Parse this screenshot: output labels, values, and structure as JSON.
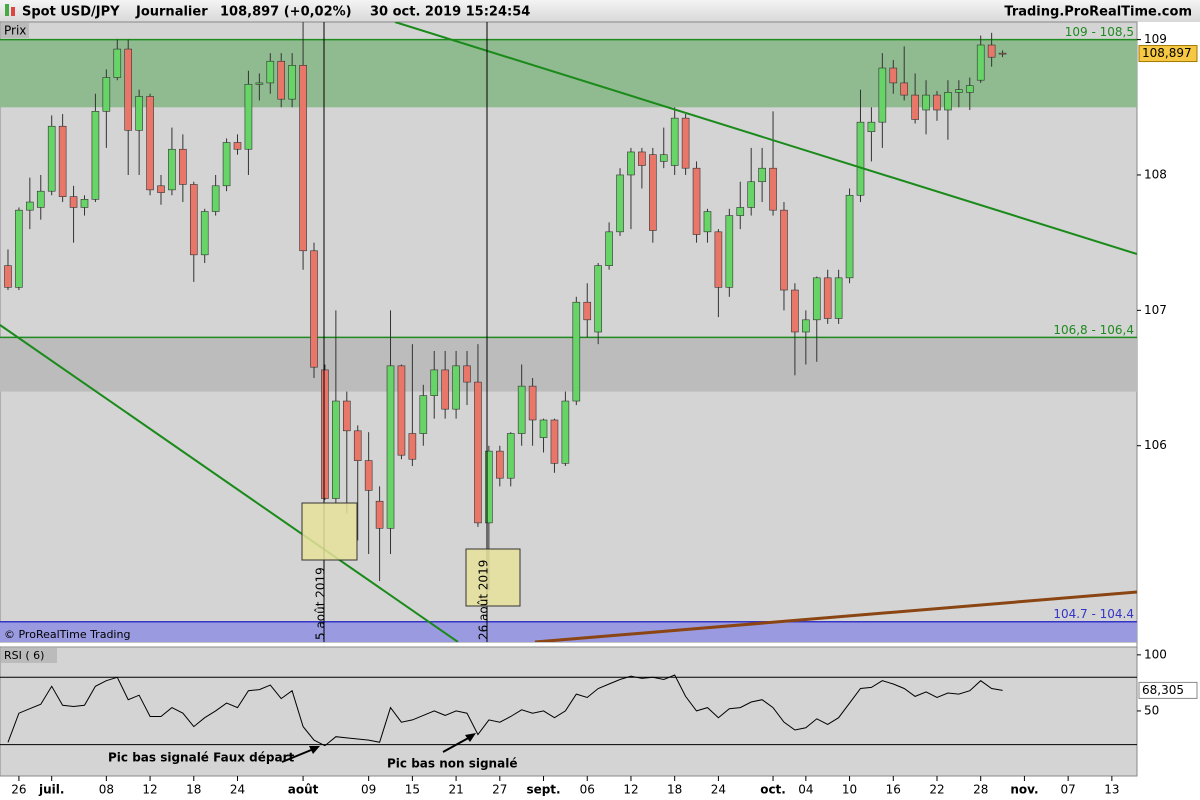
{
  "header": {
    "title": "Spot USD/JPY",
    "period": "Journalier",
    "price": "108,897 (+0,02%)",
    "datetime": "30 oct. 2019 15:24:54",
    "site": "Trading.ProRealTime.com"
  },
  "chart_data": [
    {
      "type": "candlestick",
      "label": "Prix",
      "copyright": "© ProRealTime Trading",
      "open": [
        107.33,
        107.17,
        107.74,
        107.76,
        107.88,
        108.36,
        107.84,
        107.76,
        107.82,
        108.47,
        108.72,
        108.93,
        108.33,
        108.58,
        107.92,
        107.89,
        108.19,
        107.93,
        107.41,
        107.73,
        107.92,
        108.24,
        108.19,
        108.67,
        108.68,
        108.84,
        108.56,
        108.81,
        107.44,
        106.56,
        105.61,
        106.33,
        106.11,
        105.89,
        105.59,
        105.39,
        106.59,
        106.09,
        106.09,
        106.37,
        106.56,
        106.27,
        106.59,
        106.47,
        105.43,
        105.96,
        105.76,
        106.09,
        106.44,
        106.06,
        106.19,
        105.87,
        106.33,
        107.06,
        106.84,
        107.33,
        107.58,
        108.0,
        108.17,
        108.15,
        108.1,
        108.07,
        108.42,
        108.05,
        107.58,
        107.58,
        107.17,
        107.7,
        107.76,
        107.95,
        108.05,
        107.74,
        107.15,
        106.84,
        106.93,
        107.24,
        106.94,
        107.24,
        107.85,
        108.32,
        108.39,
        108.79,
        108.68,
        108.59,
        108.48,
        108.59,
        108.48,
        108.61,
        108.61,
        108.7,
        108.96,
        108.9
      ],
      "high": [
        107.45,
        107.76,
        107.98,
        108.0,
        108.44,
        108.45,
        107.92,
        107.85,
        108.6,
        108.78,
        109.0,
        109.0,
        108.63,
        108.6,
        108.0,
        108.35,
        108.3,
        107.95,
        107.75,
        108.0,
        108.27,
        108.3,
        108.77,
        108.75,
        108.9,
        108.9,
        108.9,
        109.13,
        107.5,
        106.6,
        107.0,
        106.4,
        106.15,
        106.1,
        105.7,
        107.0,
        106.6,
        106.75,
        106.45,
        106.7,
        106.7,
        106.7,
        106.7,
        106.75,
        106.0,
        106.0,
        106.1,
        106.6,
        106.5,
        106.2,
        106.2,
        106.4,
        107.1,
        107.2,
        107.35,
        107.65,
        108.05,
        108.2,
        108.2,
        108.2,
        108.35,
        108.5,
        108.45,
        108.1,
        107.75,
        107.6,
        107.75,
        107.95,
        108.2,
        108.2,
        108.47,
        107.8,
        107.2,
        107.0,
        107.25,
        107.3,
        107.3,
        107.9,
        108.63,
        108.5,
        108.9,
        108.85,
        108.95,
        108.75,
        108.7,
        108.62,
        108.7,
        108.7,
        108.72,
        109.03,
        109.05,
        108.92
      ],
      "low": [
        107.15,
        107.15,
        107.6,
        107.67,
        107.85,
        107.8,
        107.5,
        107.7,
        107.8,
        108.2,
        108.7,
        108.0,
        108.0,
        107.85,
        107.78,
        107.85,
        107.8,
        107.21,
        107.35,
        107.7,
        107.88,
        108.15,
        108.0,
        108.55,
        108.6,
        108.5,
        108.5,
        107.3,
        106.5,
        105.6,
        105.58,
        105.5,
        105.3,
        105.2,
        105.0,
        105.2,
        105.9,
        105.85,
        106.0,
        106.2,
        106.2,
        106.2,
        106.3,
        105.4,
        104.93,
        105.7,
        105.7,
        106.0,
        106.0,
        105.95,
        105.8,
        105.85,
        106.3,
        106.8,
        106.75,
        107.3,
        107.55,
        107.6,
        107.9,
        107.5,
        108.05,
        108.0,
        108.0,
        107.5,
        107.5,
        106.95,
        107.1,
        107.6,
        107.7,
        107.8,
        107.7,
        107.0,
        106.52,
        106.6,
        106.62,
        106.9,
        106.9,
        107.2,
        107.8,
        108.1,
        108.2,
        108.6,
        108.55,
        108.38,
        108.3,
        108.4,
        108.26,
        108.5,
        108.48,
        108.68,
        108.8,
        108.87
      ],
      "close": [
        107.17,
        107.74,
        107.8,
        107.88,
        108.36,
        107.84,
        107.76,
        107.82,
        108.47,
        108.72,
        108.93,
        108.33,
        108.58,
        107.89,
        107.87,
        108.19,
        107.93,
        107.41,
        107.73,
        107.92,
        108.24,
        108.19,
        108.67,
        108.68,
        108.84,
        108.56,
        108.81,
        107.44,
        106.58,
        105.61,
        106.33,
        106.11,
        105.89,
        105.67,
        105.39,
        106.59,
        105.93,
        105.9,
        106.37,
        106.56,
        106.27,
        106.59,
        106.47,
        105.43,
        105.96,
        105.76,
        106.09,
        106.44,
        106.19,
        106.19,
        105.87,
        106.33,
        107.06,
        106.93,
        107.33,
        107.58,
        108.0,
        108.17,
        108.07,
        107.59,
        108.15,
        108.42,
        108.05,
        107.56,
        107.73,
        107.17,
        107.7,
        107.76,
        107.95,
        108.05,
        107.74,
        107.15,
        106.84,
        106.93,
        107.24,
        106.94,
        107.24,
        107.85,
        108.39,
        108.39,
        108.79,
        108.68,
        108.59,
        108.41,
        108.59,
        108.48,
        108.61,
        108.63,
        108.66,
        108.96,
        108.87,
        108.897
      ],
      "colors": {
        "up": "#66d466",
        "down": "#e8776a"
      },
      "ylim": [
        104.55,
        109.13
      ],
      "yticks": [
        106,
        107,
        108,
        109
      ],
      "xlim": [
        -0.73,
        103.3
      ],
      "xticks": [
        {
          "value": 1,
          "label": "26"
        },
        {
          "value": 4,
          "label": "juil."
        },
        {
          "value": 9,
          "label": "08"
        },
        {
          "value": 13,
          "label": "12"
        },
        {
          "value": 17,
          "label": "18"
        },
        {
          "value": 21,
          "label": "24"
        },
        {
          "value": 27,
          "label": "août"
        },
        {
          "value": 33,
          "label": "09"
        },
        {
          "value": 37,
          "label": "15"
        },
        {
          "value": 41,
          "label": "21"
        },
        {
          "value": 45,
          "label": "27"
        },
        {
          "value": 49,
          "label": "sept."
        },
        {
          "value": 53,
          "label": "06"
        },
        {
          "value": 57,
          "label": "12"
        },
        {
          "value": 61,
          "label": "18"
        },
        {
          "value": 65,
          "label": "24"
        },
        {
          "value": 70,
          "label": "oct."
        },
        {
          "value": 73,
          "label": "04"
        },
        {
          "value": 77,
          "label": "10"
        },
        {
          "value": 81,
          "label": "16"
        },
        {
          "value": 85,
          "label": "22"
        },
        {
          "value": 89,
          "label": "28"
        },
        {
          "value": 93,
          "label": "nov."
        },
        {
          "value": 97,
          "label": "07"
        },
        {
          "value": 101,
          "label": "13"
        }
      ],
      "last_price": {
        "value": 108.897,
        "label": "108,897"
      },
      "zones": [
        {
          "from": 109,
          "to": 108.5,
          "label": "109 - 108,5",
          "fill": "#90bb90",
          "color": "#1f8a1f"
        },
        {
          "from": 106.8,
          "to": 106.4,
          "label": "106,8 - 106,4",
          "fill": "#bcbcbc",
          "color": "#1f8a1f"
        },
        {
          "from": 104.7,
          "to": 104.4,
          "label": "104.7 - 104.4",
          "fill": "#9a9ae0",
          "color": "#3535c8"
        }
      ],
      "annotations": [
        "5 août 2019",
        "26 août 2019"
      ]
    },
    {
      "type": "line",
      "title": "RSI ( 6)",
      "color": "#000000",
      "values": [
        22,
        48,
        52,
        56,
        72,
        55,
        54,
        55,
        72,
        77,
        80,
        60,
        64,
        45,
        45,
        53,
        48,
        36,
        44,
        50,
        57,
        53,
        68,
        69,
        73,
        61,
        68,
        36,
        24,
        19,
        27,
        26,
        25,
        24,
        22,
        53,
        40,
        42,
        46,
        50,
        46,
        50,
        48,
        29,
        42,
        40,
        45,
        51,
        48,
        50,
        44,
        50,
        65,
        62,
        70,
        74,
        78,
        81,
        79,
        80,
        78,
        82,
        63,
        50,
        53,
        44,
        52,
        53,
        58,
        60,
        53,
        40,
        33,
        35,
        43,
        38,
        44,
        57,
        70,
        71,
        77,
        74,
        70,
        63,
        67,
        62,
        66,
        65,
        68,
        77,
        70,
        68.305
      ],
      "ylim": [
        -8,
        107
      ],
      "yticks": [
        50,
        100
      ],
      "levels": [
        80,
        20
      ],
      "last_value": {
        "value": 68.305,
        "label": "68,305"
      },
      "annotations": [
        "Pic bas signalé Faux départ",
        "Pic bas non signalé"
      ]
    }
  ]
}
